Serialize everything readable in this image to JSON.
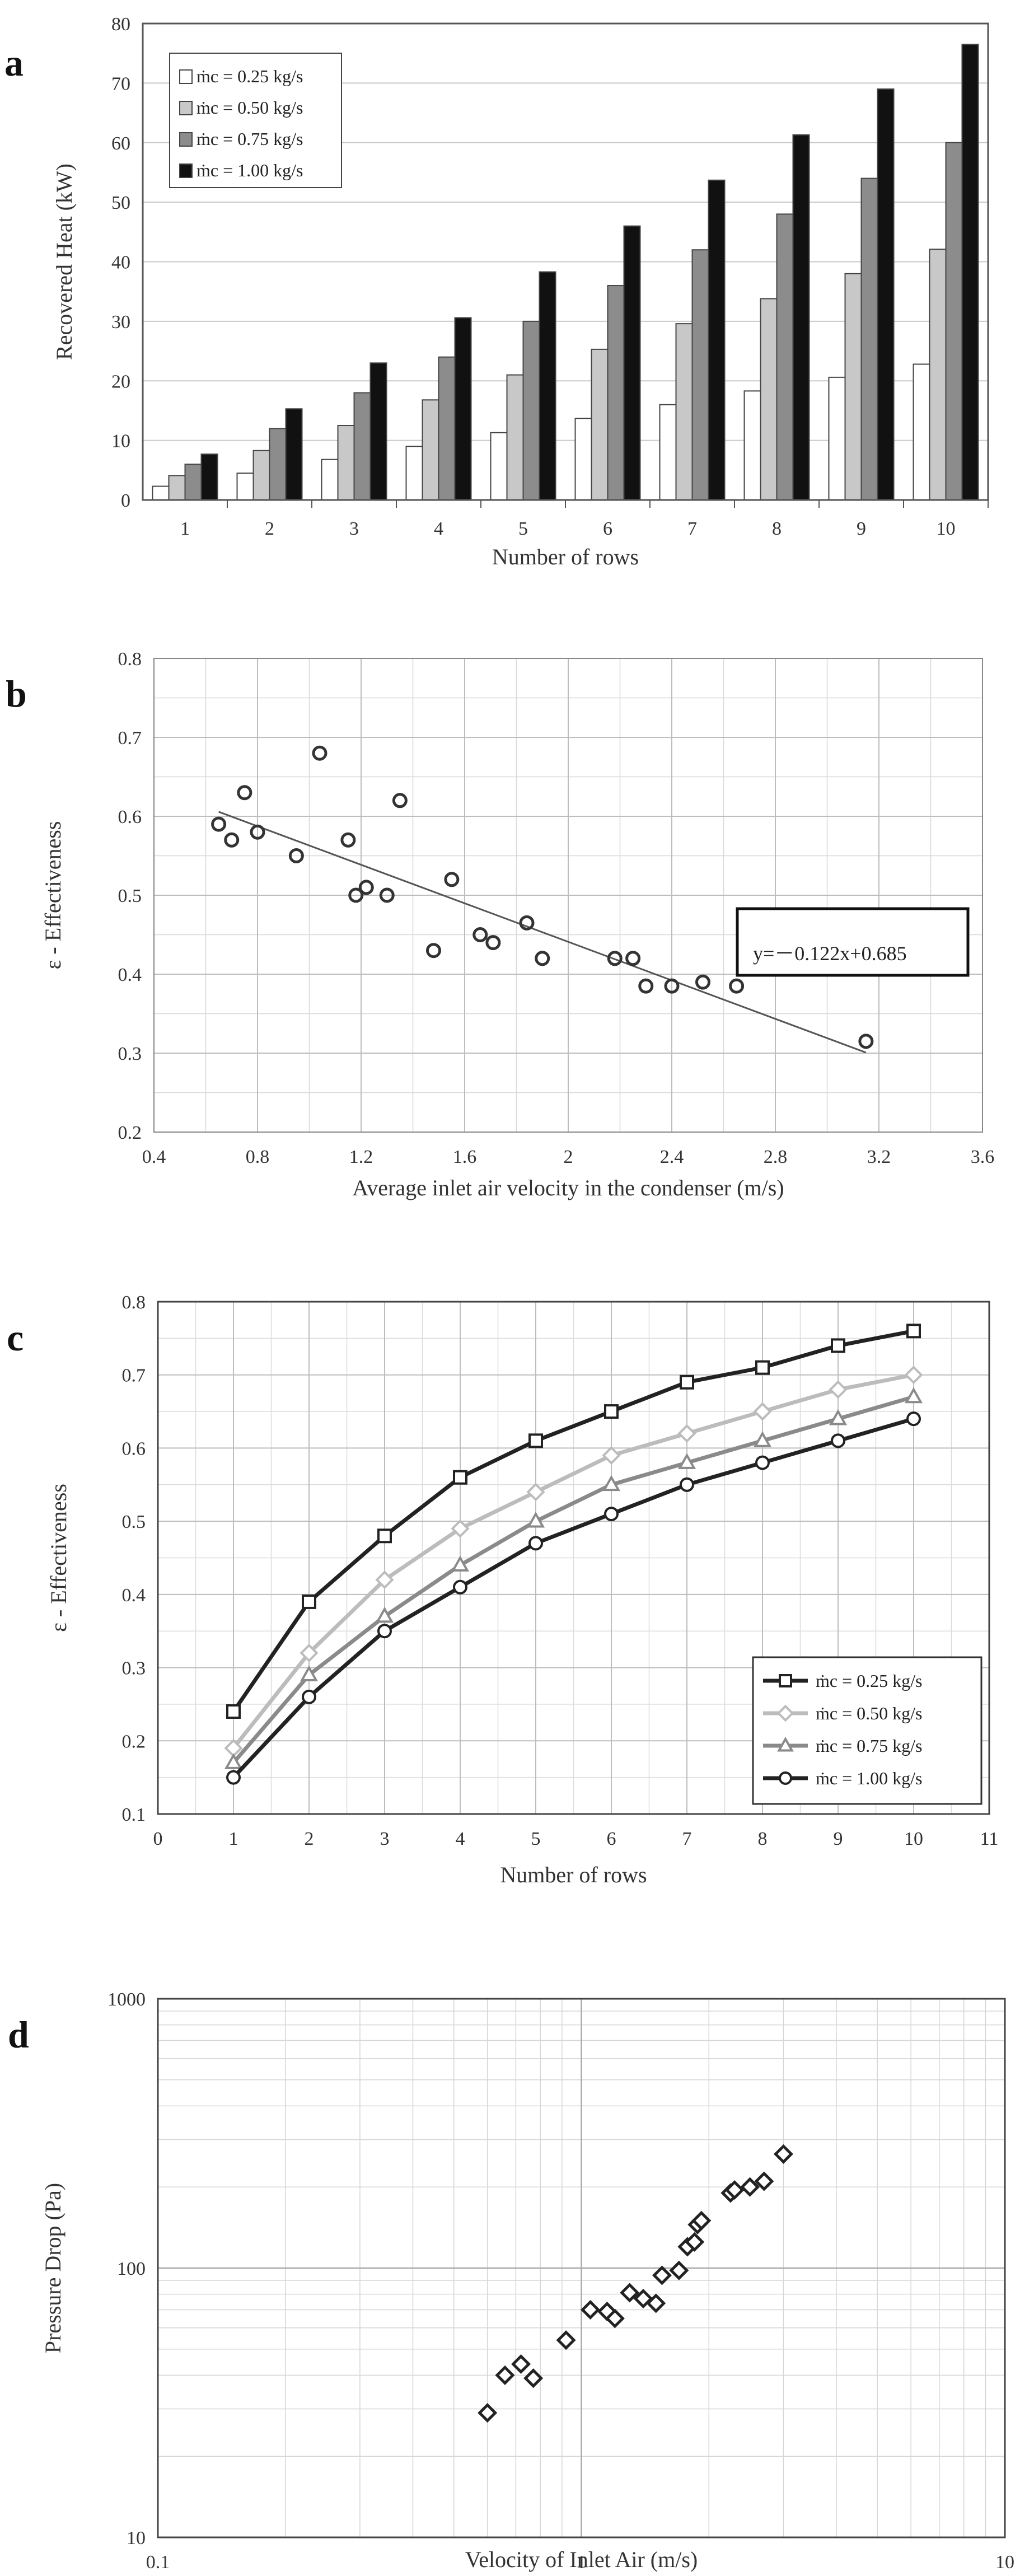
{
  "chart_data": [
    {
      "id": "a",
      "panel_label": "a",
      "type": "bar",
      "categories": [
        "1",
        "2",
        "3",
        "4",
        "5",
        "6",
        "7",
        "8",
        "9",
        "10"
      ],
      "series": [
        {
          "name": "ṁc = 0.25 kg/s",
          "color": "#ffffff",
          "values": [
            2.3,
            4.5,
            6.8,
            9.0,
            11.3,
            13.7,
            16.0,
            18.3,
            20.6,
            22.8
          ]
        },
        {
          "name": "ṁc = 0.50 kg/s",
          "color": "#c8c8c8",
          "values": [
            4.1,
            8.3,
            12.5,
            16.8,
            21.0,
            25.3,
            29.6,
            33.8,
            38.0,
            42.1
          ]
        },
        {
          "name": "ṁc = 0.75 kg/s",
          "color": "#8c8c8c",
          "values": [
            6.0,
            12.0,
            18.0,
            24.0,
            30.0,
            36.0,
            42.0,
            48.0,
            54.0,
            60.0
          ]
        },
        {
          "name": "ṁc = 1.00 kg/s",
          "color": "#111111",
          "values": [
            7.7,
            15.3,
            23.0,
            30.6,
            38.3,
            46.0,
            53.7,
            61.3,
            69.0,
            76.5
          ]
        }
      ],
      "xlabel": "Number of rows",
      "ylabel": "Recovered Heat (kW)",
      "ylim": [
        0,
        80
      ],
      "yticks": [
        0,
        10,
        20,
        30,
        40,
        50,
        60,
        70,
        80
      ],
      "legend_position": "top-left",
      "grid": "horizontal"
    },
    {
      "id": "b",
      "panel_label": "b",
      "type": "scatter",
      "points": [
        {
          "x": 0.65,
          "y": 0.59
        },
        {
          "x": 0.7,
          "y": 0.57
        },
        {
          "x": 0.75,
          "y": 0.63
        },
        {
          "x": 0.8,
          "y": 0.58
        },
        {
          "x": 0.95,
          "y": 0.55
        },
        {
          "x": 1.04,
          "y": 0.68
        },
        {
          "x": 1.15,
          "y": 0.57
        },
        {
          "x": 1.18,
          "y": 0.5
        },
        {
          "x": 1.22,
          "y": 0.51
        },
        {
          "x": 1.3,
          "y": 0.5
        },
        {
          "x": 1.35,
          "y": 0.62
        },
        {
          "x": 1.48,
          "y": 0.43
        },
        {
          "x": 1.55,
          "y": 0.52
        },
        {
          "x": 1.66,
          "y": 0.45
        },
        {
          "x": 1.71,
          "y": 0.44
        },
        {
          "x": 1.84,
          "y": 0.465
        },
        {
          "x": 1.9,
          "y": 0.42
        },
        {
          "x": 2.18,
          "y": 0.42
        },
        {
          "x": 2.25,
          "y": 0.42
        },
        {
          "x": 2.3,
          "y": 0.385
        },
        {
          "x": 2.4,
          "y": 0.385
        },
        {
          "x": 2.52,
          "y": 0.39
        },
        {
          "x": 2.65,
          "y": 0.385
        },
        {
          "x": 3.15,
          "y": 0.315
        }
      ],
      "fit": {
        "slope": -0.122,
        "intercept": 0.685,
        "x_range": [
          0.65,
          3.15
        ],
        "label": "y=－0.122x+0.685"
      },
      "xlabel": "Average inlet air velocity in the condenser (m/s)",
      "ylabel": "ε - Effectiveness",
      "xlim": [
        0.4,
        3.6
      ],
      "ylim": [
        0.2,
        0.8
      ],
      "xticks": [
        "0.4",
        "0.8",
        "1.2",
        "1.6",
        "2",
        "2.4",
        "2.8",
        "3.2",
        "3.6"
      ],
      "yticks": [
        "0.2",
        "0.3",
        "0.4",
        "0.5",
        "0.6",
        "0.7",
        "0.8"
      ],
      "grid": "both"
    },
    {
      "id": "c",
      "panel_label": "c",
      "type": "line",
      "x": [
        1,
        2,
        3,
        4,
        5,
        6,
        7,
        8,
        9,
        10
      ],
      "series": [
        {
          "name": "ṁc = 0.25 kg/s",
          "marker": "square",
          "color": "#222222",
          "values": [
            0.24,
            0.39,
            0.48,
            0.56,
            0.61,
            0.65,
            0.69,
            0.71,
            0.74,
            0.76
          ]
        },
        {
          "name": "ṁc = 0.50 kg/s",
          "marker": "diamond",
          "color": "#bcbcbc",
          "values": [
            0.19,
            0.32,
            0.42,
            0.49,
            0.54,
            0.59,
            0.62,
            0.65,
            0.68,
            0.7
          ]
        },
        {
          "name": "ṁc = 0.75 kg/s",
          "marker": "triangle",
          "color": "#8a8a8a",
          "values": [
            0.17,
            0.29,
            0.37,
            0.44,
            0.5,
            0.55,
            0.58,
            0.61,
            0.64,
            0.67
          ]
        },
        {
          "name": "ṁc = 1.00 kg/s",
          "marker": "circle",
          "color": "#222222",
          "values": [
            0.15,
            0.26,
            0.35,
            0.41,
            0.47,
            0.51,
            0.55,
            0.58,
            0.61,
            0.64
          ]
        }
      ],
      "xlabel": "Number of rows",
      "ylabel": "ε - Effectiveness",
      "xlim": [
        0,
        11
      ],
      "ylim": [
        0.1,
        0.8
      ],
      "xticks": [
        "0",
        "1",
        "2",
        "3",
        "4",
        "5",
        "6",
        "7",
        "8",
        "9",
        "10",
        "11"
      ],
      "yticks": [
        "0.1",
        "0.2",
        "0.3",
        "0.4",
        "0.5",
        "0.6",
        "0.7",
        "0.8"
      ],
      "legend_position": "bottom-right",
      "grid": "both"
    },
    {
      "id": "d",
      "panel_label": "d",
      "type": "scatter",
      "x_scale": "log",
      "y_scale": "log",
      "points": [
        {
          "x": 0.6,
          "y": 29
        },
        {
          "x": 0.66,
          "y": 40
        },
        {
          "x": 0.72,
          "y": 44
        },
        {
          "x": 0.77,
          "y": 39
        },
        {
          "x": 0.92,
          "y": 54
        },
        {
          "x": 1.05,
          "y": 70
        },
        {
          "x": 1.15,
          "y": 69
        },
        {
          "x": 1.2,
          "y": 65
        },
        {
          "x": 1.3,
          "y": 81
        },
        {
          "x": 1.4,
          "y": 77
        },
        {
          "x": 1.5,
          "y": 74
        },
        {
          "x": 1.55,
          "y": 94
        },
        {
          "x": 1.7,
          "y": 98
        },
        {
          "x": 1.78,
          "y": 120
        },
        {
          "x": 1.85,
          "y": 125
        },
        {
          "x": 1.88,
          "y": 145
        },
        {
          "x": 1.92,
          "y": 150
        },
        {
          "x": 2.25,
          "y": 190
        },
        {
          "x": 2.3,
          "y": 195
        },
        {
          "x": 2.5,
          "y": 200
        },
        {
          "x": 2.7,
          "y": 210
        },
        {
          "x": 3.0,
          "y": 265
        }
      ],
      "xlabel": "Velocity of Inlet Air (m/s)",
      "ylabel": "Pressure Drop (Pa)",
      "xlim": [
        0.1,
        10
      ],
      "ylim": [
        10,
        1000
      ],
      "xticks": [
        "0.1",
        "1",
        "10"
      ],
      "yticks": [
        "10",
        "100",
        "1000"
      ],
      "grid": "both"
    }
  ]
}
